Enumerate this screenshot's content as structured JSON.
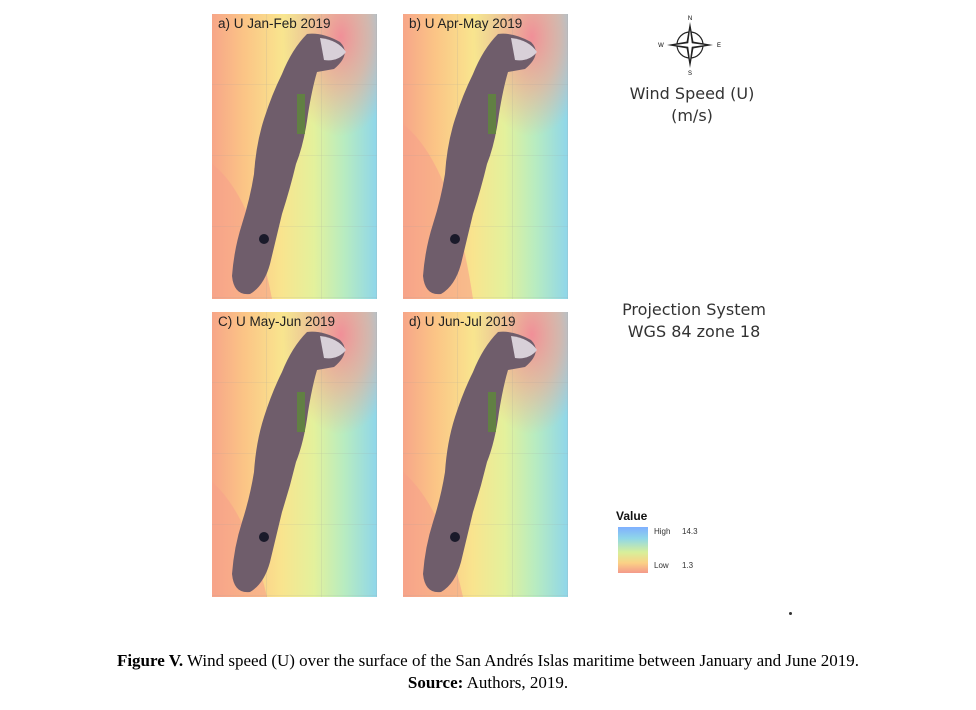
{
  "panels": [
    {
      "id": "a",
      "title": "a) U Jan-Feb 2019"
    },
    {
      "id": "b",
      "title": "b) U Apr-May 2019"
    },
    {
      "id": "c",
      "title": "C) U May-Jun 2019"
    },
    {
      "id": "d",
      "title": "d) U Jun-Jul 2019"
    }
  ],
  "compass": {
    "n": "N",
    "s": "S",
    "e": "E",
    "w": "W"
  },
  "wind_label": {
    "line1": "Wind Speed (U)",
    "line2": "(m/s)"
  },
  "projection": {
    "line1": "Projection System",
    "line2": "WGS 84 zone 18"
  },
  "legend": {
    "title": "Value",
    "high_label": "High",
    "high_value": "14.3",
    "low_label": "Low",
    "low_value": "1.3",
    "colors": [
      "#7fb0ff",
      "#8fd7e8",
      "#d8ef9a",
      "#fbd186",
      "#f49a8a"
    ]
  },
  "caption": {
    "label": "Figure V.",
    "text": " Wind speed (U) over the surface of the San Andrés Islas maritime between January and June 2019.",
    "source_label": "Source:",
    "source_text": " Authors, 2019."
  }
}
